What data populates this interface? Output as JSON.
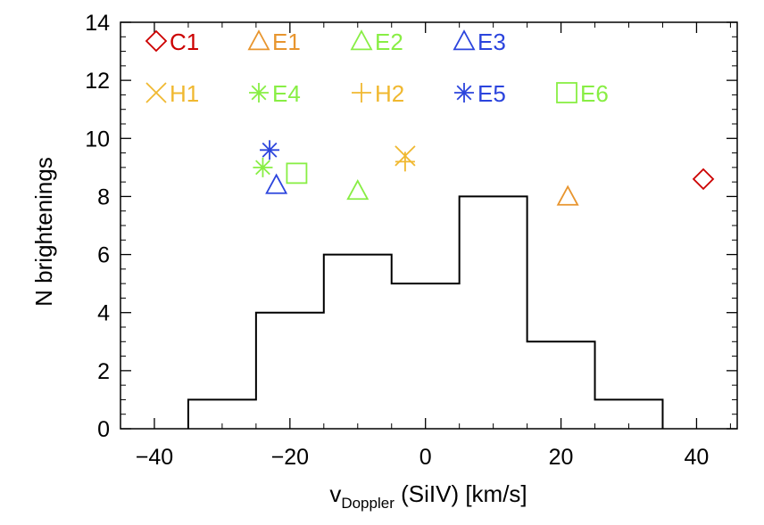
{
  "chart_data": {
    "type": "histogram",
    "ylabel": "N brightenings",
    "xlabel": {
      "main": "v",
      "subscript": "Doppler",
      "suffix": " (SiIV) [km/s]"
    },
    "xlim": [
      -45,
      46
    ],
    "ylim": [
      0,
      14
    ],
    "xticks": [
      -40,
      -20,
      0,
      20,
      40
    ],
    "xtick_labels": [
      "−40",
      "−20",
      "0",
      "20",
      "40"
    ],
    "yticks": [
      0,
      2,
      4,
      6,
      8,
      10,
      12,
      14
    ],
    "ytick_labels": [
      "0",
      "2",
      "4",
      "6",
      "8",
      "10",
      "12",
      "14"
    ],
    "histogram": {
      "bin_edges": [
        -35,
        -25,
        -15,
        -5,
        5,
        15,
        25,
        35
      ],
      "counts": [
        1,
        4,
        6,
        5,
        8,
        3,
        1
      ],
      "color": "#000000"
    },
    "markers": [
      {
        "name": "C1",
        "symbol": "diamond",
        "color": "#cc0000",
        "x": 41,
        "y": 8.6
      },
      {
        "name": "E1",
        "symbol": "triangle",
        "color": "#e8952e",
        "x": 21,
        "y": 8.0
      },
      {
        "name": "E2",
        "symbol": "triangle",
        "color": "#88ee44",
        "x": -10,
        "y": 8.2
      },
      {
        "name": "E3",
        "symbol": "triangle",
        "color": "#2b44dd",
        "x": -22,
        "y": 8.4
      },
      {
        "name": "H1",
        "symbol": "cross",
        "color": "#f0b830",
        "x": -3,
        "y": 9.4
      },
      {
        "name": "E4",
        "symbol": "asterisk",
        "color": "#88ee44",
        "x": -24,
        "y": 9.0
      },
      {
        "name": "H2",
        "symbol": "plus",
        "color": "#f0b830",
        "x": -3,
        "y": 9.2
      },
      {
        "name": "E5",
        "symbol": "asterisk",
        "color": "#2b44dd",
        "x": -23,
        "y": 9.6
      },
      {
        "name": "E6",
        "symbol": "square",
        "color": "#88ee44",
        "x": -19,
        "y": 8.8
      }
    ],
    "legend": {
      "placement": "top-left",
      "rows": [
        [
          "C1",
          "E1",
          "E2",
          "E3"
        ],
        [
          "H1",
          "E4",
          "H2",
          "E5",
          "E6"
        ]
      ]
    }
  }
}
